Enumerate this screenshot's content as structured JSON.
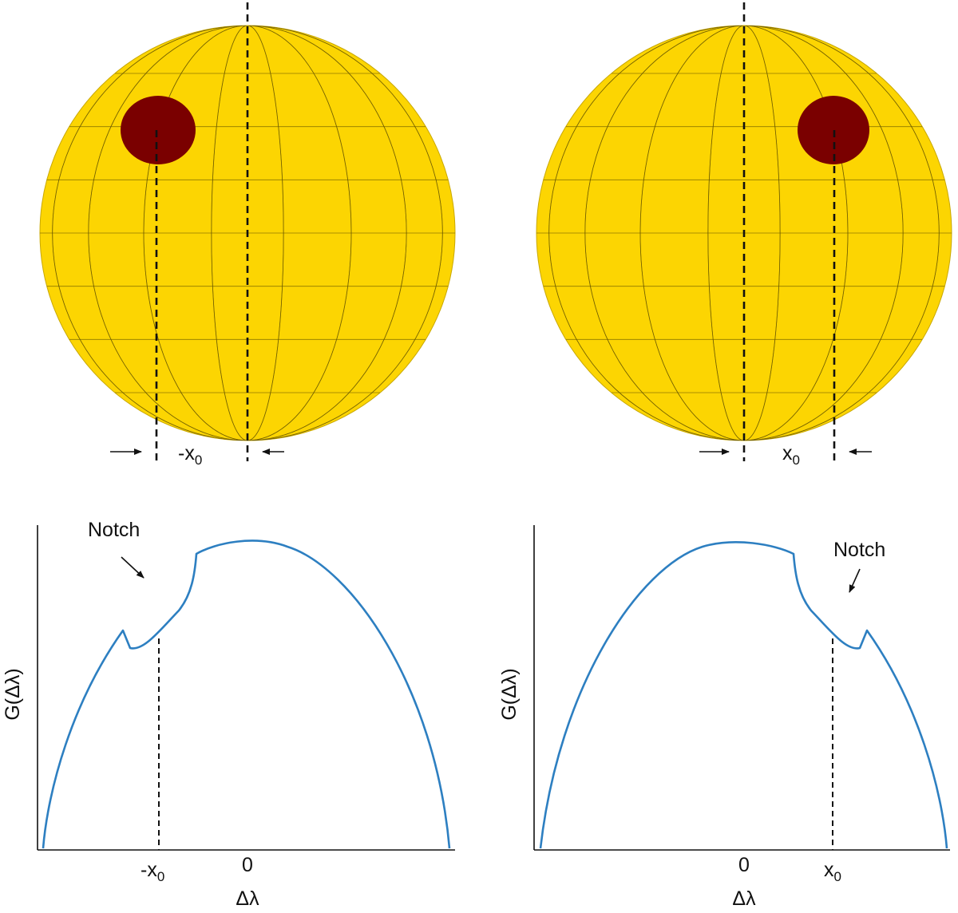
{
  "colors": {
    "star": "#fcd502",
    "spot": "#7a0000",
    "curve": "#2d7fc1",
    "grid": "#6b5a00"
  },
  "top_left": {
    "offset_label": "-x",
    "offset_sub": "0"
  },
  "top_right": {
    "offset_label": "x",
    "offset_sub": "0"
  },
  "bottom_left": {
    "notch_label": "Notch",
    "ylabel": "G(Δλ)",
    "xlabel": "Δλ",
    "tick_minus_x0": "-x",
    "tick_minus_x0_sub": "0",
    "tick_zero": "0"
  },
  "bottom_right": {
    "notch_label": "Notch",
    "ylabel": "G(Δλ)",
    "xlabel": "Δλ",
    "tick_zero": "0",
    "tick_x0": "x",
    "tick_x0_sub": "0"
  }
}
